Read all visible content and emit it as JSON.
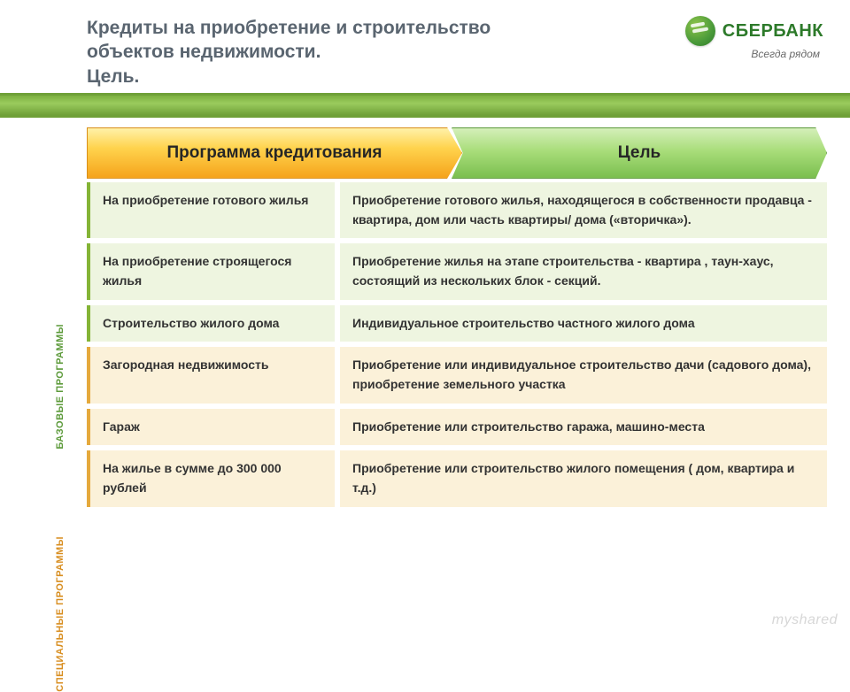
{
  "header": {
    "title": "Кредиты на приобретение и строительство объектов недвижимости.\nЦель.",
    "logo_text": "СБЕРБАНК",
    "logo_tagline": "Всегда рядом"
  },
  "colors": {
    "title_text": "#5a6570",
    "brand_green": "#2d7a2a",
    "bar_gradient_top": "#7db040",
    "bar_gradient_bottom": "#6fa038",
    "base_row_bg": "#eef5e0",
    "base_row_accent": "#84b436",
    "spec_row_bg": "#fbf1d9",
    "spec_row_accent": "#e5a93c",
    "tab_program_top": "#fff1a8",
    "tab_program_bottom": "#f5a31b",
    "tab_goal_top": "#d4efb9",
    "tab_goal_bottom": "#7bbf4f"
  },
  "tabs": {
    "program": "Программа кредитования",
    "goal": "Цель"
  },
  "side_labels": {
    "base": "БАЗОВЫЕ ПРОГРАММЫ",
    "spec": "СПЕЦИАЛЬНЫЕ ПРОГРАММЫ"
  },
  "rows": [
    {
      "group": "base",
      "program": "На приобретение готового жилья",
      "goal": "Приобретение готового жилья, находящегося в собственности продавца - квартира, дом или часть квартиры/ дома («вторичка»)."
    },
    {
      "group": "base",
      "program": "На приобретение строящегося жилья",
      "goal": "Приобретение жилья на этапе строительства - квартира , таун-хаус, состоящий из нескольких блок - секций."
    },
    {
      "group": "base",
      "program": "Строительство жилого дома",
      "goal": "Индивидуальное строительство частного жилого дома"
    },
    {
      "group": "spec",
      "program": "Загородная недвижимость",
      "goal": "Приобретение или индивидуальное строительство дачи (садового дома), приобретение земельного  участка"
    },
    {
      "group": "spec",
      "program": "Гараж",
      "goal": "Приобретение или строительство гаража, машино-места"
    },
    {
      "group": "spec",
      "program": "На жилье в сумме до 300 000 рублей",
      "goal": "Приобретение или строительство жилого помещения ( дом, квартира и т.д.)"
    }
  ],
  "watermark": "myshared"
}
